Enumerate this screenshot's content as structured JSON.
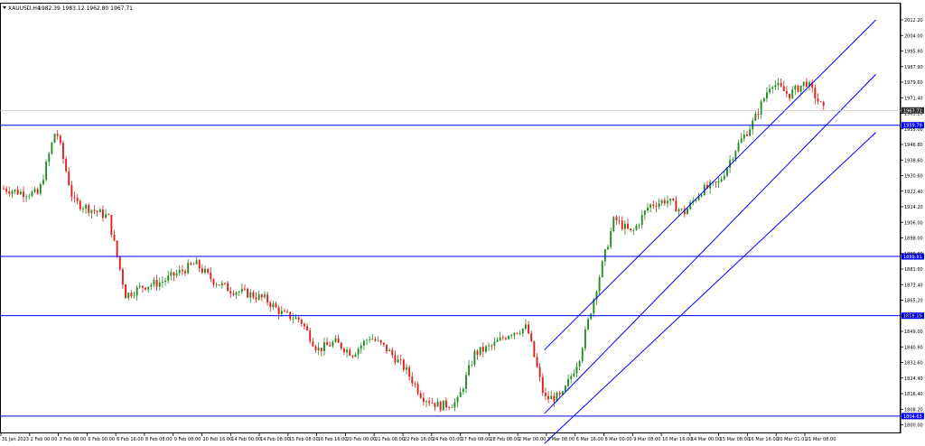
{
  "header": {
    "symbol": "XAUUSD,H4",
    "ohlc": "1982.39 1983.12 1962.80 1967.71"
  },
  "chart_data": {
    "type": "candlestick",
    "symbol": "XAUUSD",
    "timeframe": "H4",
    "ylim": [
      1800,
      2016
    ],
    "y_ticks": [
      "2012.20",
      "2004.00",
      "1995.80",
      "1987.90",
      "1979.60",
      "1971.40",
      "1963.20",
      "1955.00",
      "1946.80",
      "1938.60",
      "1930.60",
      "1922.40",
      "1914.20",
      "1906.00",
      "1898.00",
      "1889.80",
      "1881.60",
      "1873.40",
      "1865.20",
      "1857.10",
      "1849.00",
      "1840.80",
      "1832.60",
      "1824.40",
      "1816.40",
      "1808.20",
      "1800.00"
    ],
    "x_ticks": [
      "31 Jan 2023",
      "2 Feb 00:00",
      "3 Feb 08:00",
      "6 Feb 00:00",
      "6 Feb 16:00",
      "8 Feb 08:00",
      "9 Feb 08:00",
      "10 Feb 16:00",
      "14 Feb 00:00",
      "14 Feb 08:00",
      "15 Feb 08:00",
      "16 Feb 16:00",
      "20 Feb 00:00",
      "21 Feb 08:00",
      "22 Feb 16:00",
      "24 Feb 00:00",
      "27 Feb 08:00",
      "28 Feb 08:00",
      "2 Mar 00:00",
      "3 Mar 08:00",
      "6 Mar 16:00",
      "8 Mar 00:00",
      "9 Mar 08:00",
      "10 Mar 16:00",
      "14 Mar 00:00",
      "15 Mar 08:00",
      "16 Mar 16:00",
      "20 Mar 01:01",
      "21 Mar 08:00"
    ],
    "current_price": "1967.71",
    "horizontal_levels": [
      {
        "value": 1959.79,
        "label": "1959.79"
      },
      {
        "value": 1889.81,
        "label": "1889.81"
      },
      {
        "value": 1858.19,
        "label": "1858.19"
      },
      {
        "value": 1804.63,
        "label": "1804.63"
      }
    ],
    "channel_lines": [
      {
        "x_start": 31,
        "y_start": 1840.0,
        "x_end": 50,
        "y_end": 2016.0
      },
      {
        "x_start": 31,
        "y_start": 1806.0,
        "x_end": 50,
        "y_end": 1987.0
      },
      {
        "x_start": 31,
        "y_start": 1790.0,
        "x_end": 50,
        "y_end": 1956.0
      }
    ],
    "anchors": [
      [
        0,
        1926
      ],
      [
        1,
        1924
      ],
      [
        2,
        1923
      ],
      [
        3,
        1958
      ],
      [
        4,
        1919
      ],
      [
        5,
        1915
      ],
      [
        6,
        1911
      ],
      [
        7,
        1869
      ],
      [
        8,
        1874
      ],
      [
        9,
        1876
      ],
      [
        10,
        1881
      ],
      [
        11,
        1886
      ],
      [
        12,
        1877
      ],
      [
        13,
        1872
      ],
      [
        14,
        1870
      ],
      [
        15,
        1867
      ],
      [
        16,
        1859
      ],
      [
        17,
        1856
      ],
      [
        18,
        1840
      ],
      [
        19,
        1844
      ],
      [
        20,
        1838
      ],
      [
        21,
        1847
      ],
      [
        22,
        1840
      ],
      [
        23,
        1830
      ],
      [
        24,
        1815
      ],
      [
        25,
        1810
      ],
      [
        26,
        1812
      ],
      [
        27,
        1838
      ],
      [
        28,
        1842
      ],
      [
        29,
        1849
      ],
      [
        30,
        1852
      ],
      [
        31,
        1814
      ],
      [
        32,
        1815
      ],
      [
        33,
        1836
      ],
      [
        34,
        1874
      ],
      [
        35,
        1910
      ],
      [
        36,
        1902
      ],
      [
        37,
        1917
      ],
      [
        38,
        1920
      ],
      [
        39,
        1913
      ],
      [
        40,
        1925
      ],
      [
        41,
        1929
      ],
      [
        42,
        1948
      ],
      [
        43,
        1962
      ],
      [
        44,
        1983
      ],
      [
        45,
        1976
      ],
      [
        46,
        1983
      ],
      [
        47,
        1968
      ]
    ],
    "candle_count": 290,
    "x_span": 47,
    "x_end": 51,
    "colors": {
      "up": "#1e8c1e",
      "down": "#e41a1a",
      "line": "#0000ff",
      "price_label": "#303030",
      "text": "#000000"
    }
  }
}
